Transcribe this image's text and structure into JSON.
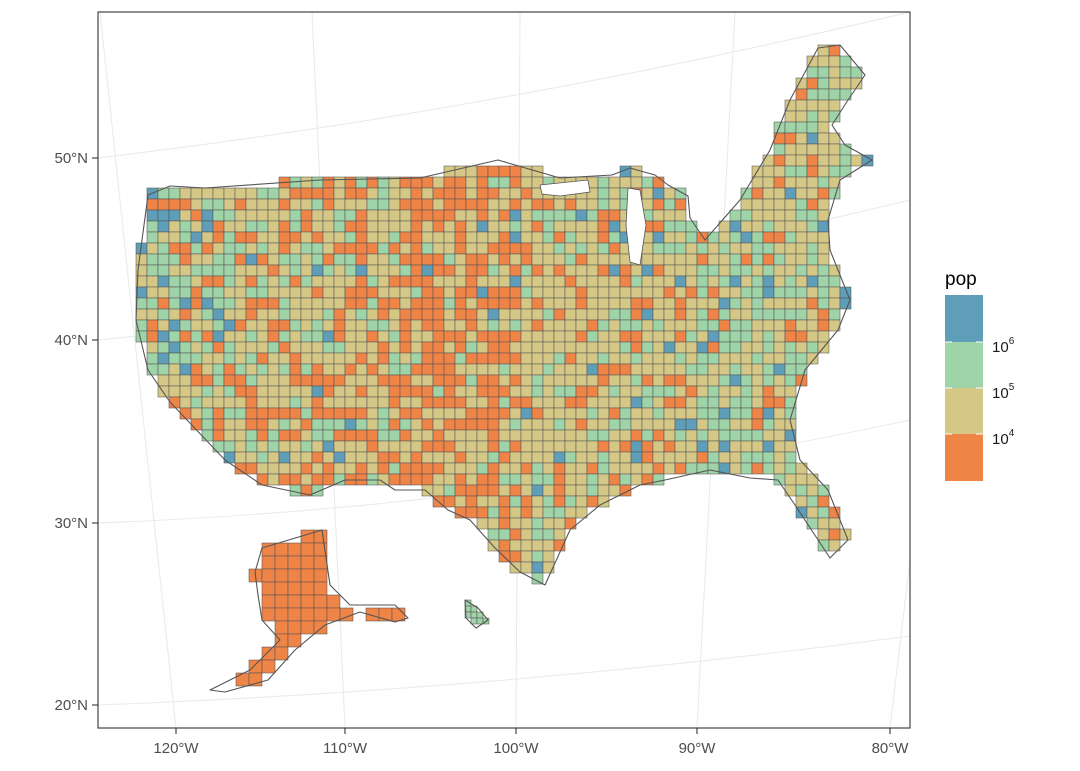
{
  "map": {
    "title": "",
    "graticule": true,
    "x_axis": {
      "ticks": [
        {
          "value": -120,
          "label": "120°W"
        },
        {
          "value": -110,
          "label": "110°W"
        },
        {
          "value": -100,
          "label": "100°W"
        },
        {
          "value": -90,
          "label": "90°W"
        },
        {
          "value": -80,
          "label": "80°W"
        }
      ]
    },
    "y_axis": {
      "ticks": [
        {
          "value": 20,
          "label": "20°N"
        },
        {
          "value": 30,
          "label": "30°N"
        },
        {
          "value": 40,
          "label": "40°N"
        },
        {
          "value": 50,
          "label": "50°N"
        }
      ]
    },
    "legend": {
      "title": "pop",
      "placement": "right",
      "breaks": [
        {
          "base": "10",
          "exponent": "6"
        },
        {
          "base": "10",
          "exponent": "5"
        },
        {
          "base": "10",
          "exponent": "4"
        }
      ],
      "colors": [
        "#5f9eb9",
        "#9fd3a8",
        "#d5c785",
        "#ef8447"
      ]
    }
  }
}
